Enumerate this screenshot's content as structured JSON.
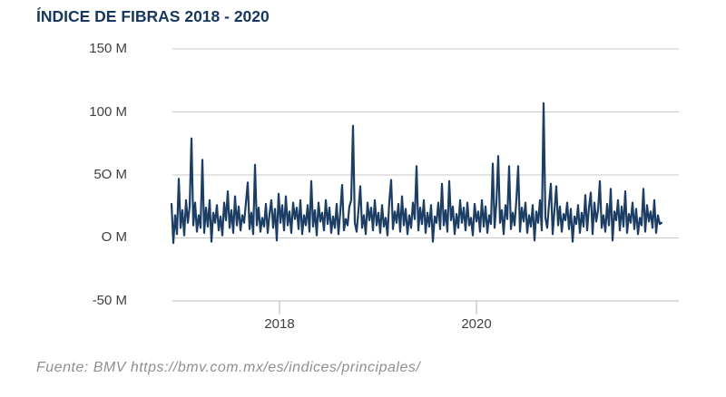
{
  "page": {
    "title": "ÍNDICE DE FIBRAS 2018 - 2020",
    "source": "Fuente: BMV https://bmv.com.mx/es/indices/principales/"
  },
  "colors": {
    "title": "#17375e",
    "series": "#1d3e64",
    "grid": "#c8c8c8",
    "axis": "#bdbdbd",
    "axis_text": "#404040",
    "source_text": "#8f8f8f"
  },
  "chart_data": {
    "type": "line",
    "title": "ÍNDICE DE FIBRAS 2018 - 2020",
    "unit": "M",
    "ylabel": "",
    "xlabel": "",
    "ylim": [
      -50,
      150
    ],
    "grid": true,
    "legend": false,
    "y_tick_labels": [
      "150 M",
      "100 M",
      "5O M",
      "O M",
      "-50 M"
    ],
    "y_tick_values": [
      150,
      100,
      50,
      0,
      -50
    ],
    "x_tick_labels": [
      "2018",
      "2020"
    ],
    "notable_peaks_M": [
      79,
      62,
      58,
      89,
      57,
      59,
      65,
      107
    ],
    "series": [
      {
        "values": [
          27,
          -4,
          18,
          3,
          47,
          8,
          22,
          2,
          30,
          12,
          25,
          79,
          10,
          28,
          5,
          18,
          8,
          62,
          4,
          24,
          9,
          30,
          -3,
          20,
          12,
          26,
          6,
          17,
          2,
          28,
          14,
          37,
          8,
          22,
          4,
          33,
          10,
          25,
          6,
          18,
          12,
          28,
          44,
          7,
          20,
          3,
          58,
          10,
          24,
          5,
          16,
          9,
          27,
          4,
          19,
          30,
          8,
          23,
          -2,
          35,
          12,
          26,
          6,
          33,
          10,
          21,
          4,
          28,
          15,
          24,
          7,
          30,
          3,
          18,
          10,
          26,
          5,
          45,
          9,
          22,
          2,
          28,
          13,
          20,
          6,
          30,
          11,
          24,
          4,
          17,
          8,
          27,
          3,
          21,
          42,
          6,
          15,
          10,
          25,
          30,
          89,
          12,
          5,
          22,
          41,
          8,
          18,
          3,
          28,
          14,
          24,
          6,
          30,
          10,
          20,
          4,
          26,
          9,
          16,
          2,
          29,
          46,
          7,
          21,
          12,
          27,
          5,
          33,
          10,
          23,
          3,
          18,
          8,
          28,
          15,
          57,
          6,
          24,
          11,
          30,
          4,
          20,
          9,
          26,
          -3,
          17,
          12,
          28,
          7,
          43,
          10,
          22,
          5,
          45,
          14,
          25,
          3,
          19,
          8,
          30,
          12,
          24,
          6,
          28,
          10,
          16,
          2,
          27,
          13,
          21,
          5,
          30,
          9,
          25,
          4,
          18,
          11,
          59,
          8,
          28,
          65,
          12,
          22,
          3,
          26,
          15,
          57,
          7,
          20,
          10,
          30,
          57,
          5,
          24,
          13,
          28,
          4,
          18,
          9,
          26,
          -2,
          21,
          12,
          30,
          6,
          107,
          16,
          8,
          27,
          43,
          3,
          22,
          41,
          10,
          25,
          5,
          19,
          14,
          28,
          7,
          23,
          -3,
          17,
          11,
          26,
          4,
          20,
          9,
          34,
          6,
          24,
          36,
          3,
          28,
          13,
          22,
          45,
          8,
          18,
          5,
          27,
          10,
          39,
          -2,
          21,
          14,
          30,
          6,
          25,
          9,
          37,
          4,
          19,
          12,
          28,
          7,
          23,
          3,
          16,
          10,
          39,
          5,
          26,
          13,
          21,
          8,
          30,
          4,
          18,
          11,
          12
        ]
      }
    ]
  }
}
